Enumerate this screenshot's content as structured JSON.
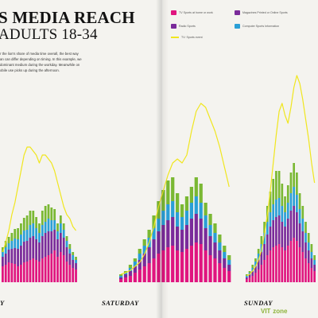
{
  "title": {
    "line1": "S MEDIA REACH",
    "line2": "ADULTS 18-34"
  },
  "body_text": [
    "r the lion's share of media time overall, the best way",
    "an can differ depending on timing. In this example, we",
    "dominant medium during the workday. Meanwhile on",
    "obile use picks up during the afternoon."
  ],
  "legend": {
    "tv": "TV Sports at home or work",
    "radio": "Radio Sports",
    "tv_event": "TV: Sports event",
    "magazines": "Magazines Printed or Online Sports",
    "computer": "Computer Sports Information"
  },
  "days": [
    "Y",
    "SATURDAY",
    "SUNDAY"
  ],
  "watermark": {
    "prefix": "VIT",
    "suffix": "zone"
  },
  "colors": {
    "tv": "#e0157f",
    "magazines": "#7a2b9a",
    "radio": "#2a9fd6",
    "computer": "#7ab833",
    "tv_event": "#f0e61e"
  },
  "chart_data": {
    "type": "bar",
    "stacked": true,
    "title": "",
    "xlabel": "",
    "ylabel": "",
    "grid": false,
    "legend_position": "top-right",
    "days": [
      {
        "label": "Y",
        "series": [
          {
            "key": "tv",
            "values": [
              20,
              22,
              25,
              24,
              23,
              20,
              22,
              25,
              26,
              28,
              30,
              28,
              26,
              30,
              32,
              34,
              36,
              40,
              32,
              38,
              34,
              26,
              22,
              18,
              16
            ]
          },
          {
            "key": "magazines",
            "values": [
              12,
              14,
              16,
              18,
              20,
              22,
              24,
              26,
              26,
              28,
              28,
              26,
              24,
              28,
              30,
              30,
              28,
              26,
              22,
              24,
              22,
              18,
              14,
              10,
              8
            ]
          },
          {
            "key": "radio",
            "values": [
              6,
              8,
              8,
              10,
              12,
              12,
              14,
              14,
              14,
              16,
              16,
              14,
              12,
              14,
              14,
              16,
              14,
              12,
              10,
              12,
              10,
              8,
              6,
              6,
              4
            ]
          },
          {
            "key": "computer",
            "values": [
              6,
              8,
              8,
              10,
              12,
              14,
              14,
              16,
              18,
              18,
              16,
              14,
              12,
              18,
              20,
              18,
              16,
              14,
              10,
              10,
              8,
              6,
              6,
              4,
              4
            ]
          }
        ],
        "line": [
          38,
          50,
          65,
          85,
          100,
          120,
          140,
          160,
          170,
          170,
          165,
          160,
          150,
          160,
          160,
          155,
          150,
          140,
          125,
          110,
          95,
          85,
          80,
          70,
          65
        ]
      },
      {
        "label": "SATURDAY",
        "series": [
          {
            "key": "tv",
            "values": [
              4,
              6,
              8,
              12,
              16,
              20,
              24,
              30,
              36,
              40,
              44,
              46,
              40,
              38,
              42,
              46,
              50,
              48,
              40,
              34,
              30,
              24,
              18,
              14
            ]
          },
          {
            "key": "magazines",
            "values": [
              2,
              4,
              6,
              8,
              12,
              16,
              20,
              24,
              28,
              32,
              34,
              36,
              30,
              28,
              30,
              34,
              36,
              32,
              28,
              24,
              20,
              16,
              12,
              8
            ]
          },
          {
            "key": "radio",
            "values": [
              2,
              2,
              4,
              6,
              8,
              10,
              12,
              14,
              16,
              18,
              20,
              20,
              18,
              16,
              18,
              20,
              22,
              20,
              16,
              14,
              12,
              10,
              8,
              6
            ]
          },
          {
            "key": "computer",
            "values": [
              2,
              2,
              4,
              4,
              6,
              8,
              10,
              16,
              22,
              26,
              30,
              30,
              24,
              16,
              18,
              20,
              24,
              24,
              16,
              14,
              12,
              10,
              8,
              6
            ]
          }
        ],
        "line": [
          10,
          12,
          15,
          20,
          25,
          35,
          50,
          70,
          95,
          115,
          135,
          150,
          155,
          150,
          160,
          190,
          215,
          225,
          220,
          205,
          190,
          170,
          145,
          120
        ]
      },
      {
        "label": "SUNDAY",
        "series": [
          {
            "key": "tv",
            "values": [
              4,
              6,
              8,
              12,
              16,
              22,
              28,
              34,
              40,
              44,
              46,
              48,
              44,
              40,
              46,
              52,
              56,
              52,
              44,
              38,
              30,
              24,
              18,
              14
            ]
          },
          {
            "key": "magazines",
            "values": [
              2,
              4,
              6,
              8,
              12,
              16,
              20,
              26,
              30,
              34,
              36,
              36,
              32,
              30,
              34,
              38,
              40,
              36,
              30,
              26,
              20,
              16,
              12,
              8
            ]
          },
          {
            "key": "radio",
            "values": [
              2,
              2,
              4,
              6,
              8,
              10,
              14,
              16,
              18,
              20,
              22,
              22,
              20,
              18,
              20,
              22,
              24,
              22,
              18,
              16,
              12,
              10,
              8,
              6
            ]
          },
          {
            "key": "computer",
            "values": [
              2,
              2,
              4,
              4,
              6,
              10,
              14,
              20,
              26,
              32,
              36,
              34,
              28,
              20,
              22,
              26,
              30,
              28,
              20,
              16,
              14,
              12,
              10,
              6
            ]
          }
        ],
        "line": [
          8,
          10,
          14,
          20,
          28,
          40,
          60,
          85,
          115,
          150,
          185,
          215,
          225,
          210,
          200,
          220,
          245,
          260,
          250,
          230,
          205,
          180,
          150,
          125
        ]
      }
    ]
  }
}
